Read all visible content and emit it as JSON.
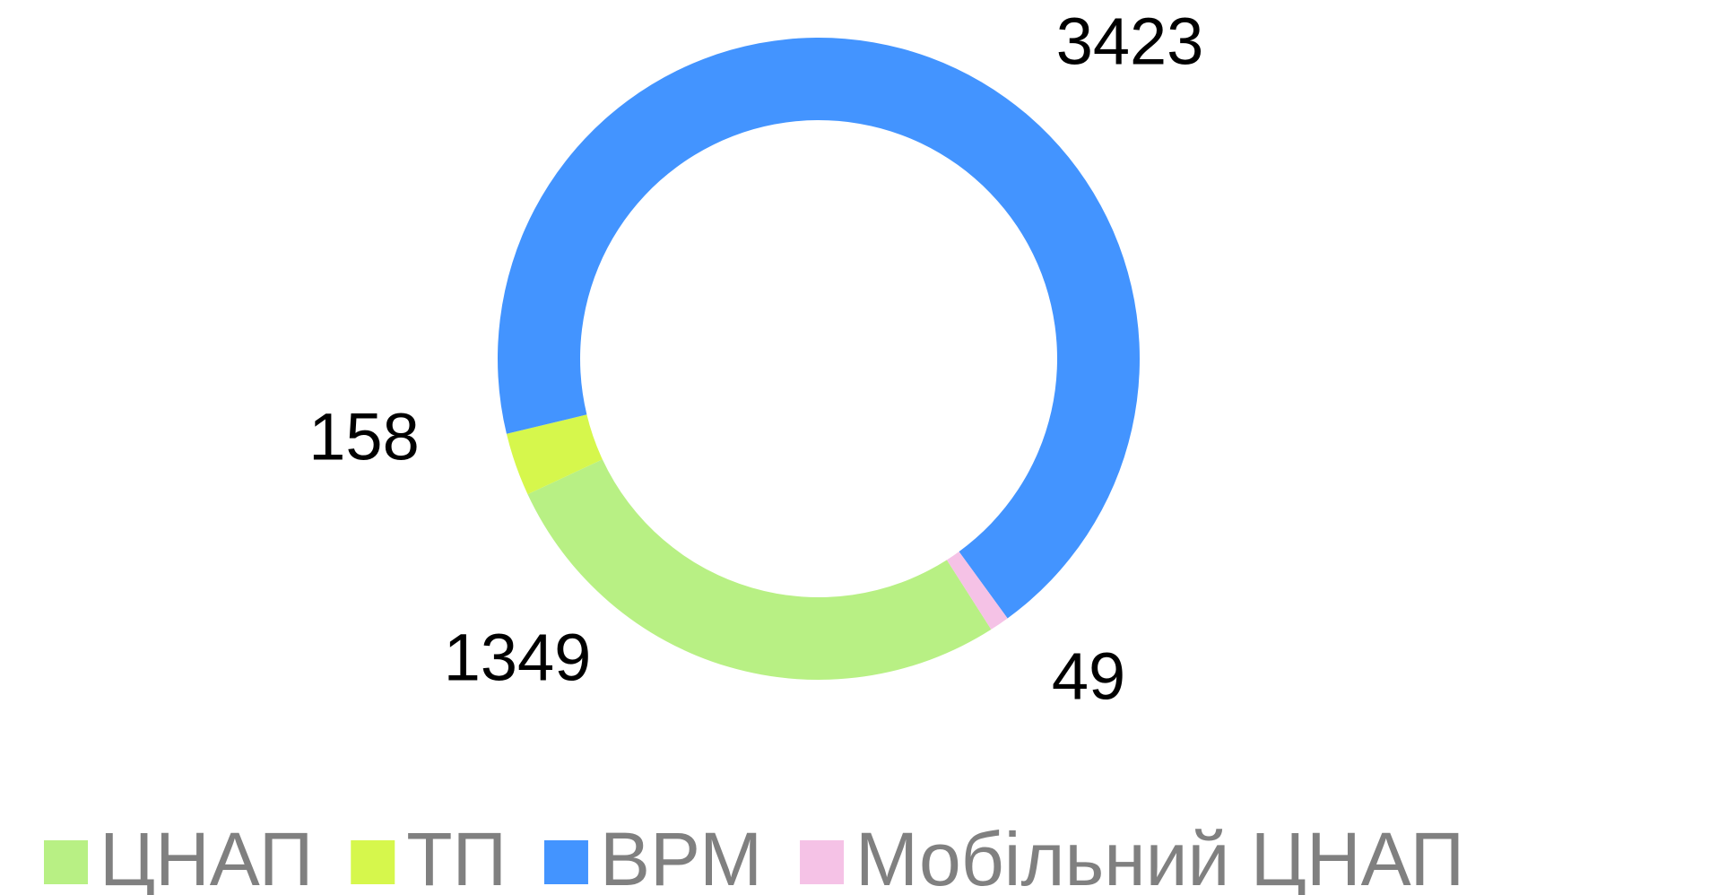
{
  "chart_data": {
    "type": "donut",
    "categories": [
      "ЦНАП",
      "ТП",
      "ВРМ",
      "Мобільний ЦНАП"
    ],
    "values": [
      1349,
      158,
      3423,
      49
    ],
    "colors": [
      "#b8f084",
      "#d6f74c",
      "#4394ff",
      "#f5c2e6"
    ],
    "legend": "bottom"
  }
}
